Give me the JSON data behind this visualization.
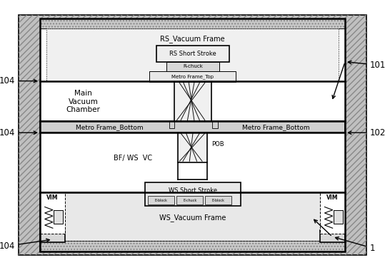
{
  "bg_color": "#ffffff",
  "line_color": "#000000",
  "hatch_gray": "#b8b8b8",
  "light_gray": "#e8e8e8",
  "mid_gray": "#d0d0d0",
  "dark_gray": "#a8a8a8",
  "labels": {
    "rs_vacuum_frame": "RS_Vacuum Frame",
    "rs_short_stroke": "RS Short Stroke",
    "r_chuck": "R-chuck",
    "metro_frame_top": "Metro Frame_Top",
    "main_vacuum_chamber": "Main\nVacuum\nChamber",
    "metro_frame_bottom_left": "Metro Frame_Bottom",
    "metro_frame_bottom_right": "Metro Frame_Bottom",
    "pob": "POB",
    "bf_ws_vc": "BF/ WS  VC",
    "ws_short_stroke": "WS Short Stroke",
    "ws_vacuum_frame": "WS_Vacuum Frame",
    "vim": "VIM",
    "e_block1": "E-block",
    "e_chuck": "E-chuck",
    "e_block2": "E-block"
  },
  "refs": {
    "r101": "101",
    "r102": "102",
    "r104_top": "104",
    "r104_mid": "104",
    "r104_btm_left": "104",
    "r104_btm_right": "104",
    "r1": "1"
  },
  "fontsize": 7.0,
  "fontsize_ref": 8.5
}
